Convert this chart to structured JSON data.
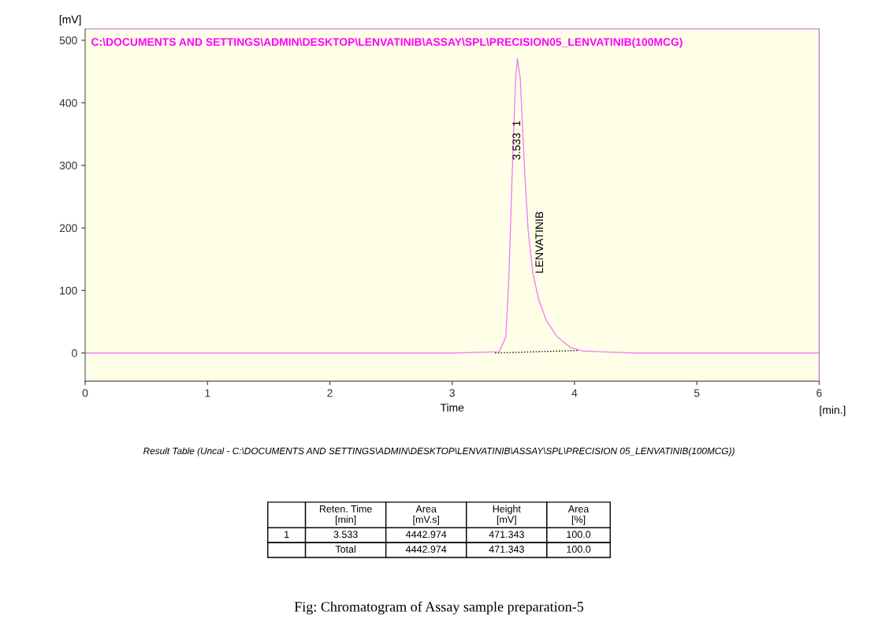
{
  "chart_data": [
    {
      "type": "line",
      "ylabel": "[mV]",
      "xlabel": "Time",
      "xlim": [
        0,
        6
      ],
      "ylim": [
        -45,
        518
      ],
      "xticks": [
        0,
        1,
        2,
        3,
        4,
        5,
        6
      ],
      "yticks": [
        0,
        100,
        200,
        300,
        400,
        500
      ],
      "grid": false,
      "legend": false,
      "line_style": "solid",
      "marker": "none",
      "series": [
        {
          "name": "C:\\DOCUMENTS AND SETTINGS\\ADMIN\\DESKTOP\\LENVATINIB\\ASSAY\\SPL\\PRECISION05_LENVATINIB(100MCG)",
          "color": "#f080f0",
          "x": [
            0,
            3.0,
            3.385,
            3.439,
            3.461,
            3.476,
            3.489,
            3.504,
            3.519,
            3.533,
            3.557,
            3.575,
            3.596,
            3.622,
            3.66,
            3.708,
            3.772,
            3.858,
            3.965,
            4.073,
            4.5,
            6
          ],
          "values": [
            0,
            0,
            2,
            26,
            110,
            194,
            278,
            362,
            438,
            471,
            438,
            362,
            278,
            194,
            127,
            85,
            51,
            26,
            9,
            3,
            0,
            0
          ]
        },
        {
          "type": "line",
          "line_style": "dotted",
          "color": "#000000",
          "x": [
            3.351,
            4.026
          ],
          "values": [
            0,
            4
          ]
        }
      ],
      "annotations": [
        {
          "text": "3.533  1",
          "x": 3.533,
          "y": 340
        },
        {
          "text": "LENVATINIB",
          "x": 3.66,
          "y": 127
        },
        "[min.]"
      ]
    },
    {
      "type": "other",
      "title": "Result Table (Uncal - C:\\DOCUMENTS AND SETTINGS\\ADMIN\\DESKTOP\\LENVATINIB\\ASSAY\\SPL\\PRECISION 05_LENVATINIB(100MCG))",
      "categories": [
        null,
        "Reten. Time\n[min]",
        "Area\n[mV.s]",
        "Height\n[mV]",
        "Area\n[%]"
      ],
      "cell_labels": [
        [
          "1",
          "3.533",
          "4442.974",
          "471.343",
          "100.0"
        ],
        [
          null,
          "Total",
          "4442.974",
          "471.343",
          "100.0"
        ]
      ],
      "annotations": [
        "Fig: Chromatogram of Assay sample preparation-5"
      ]
    }
  ]
}
